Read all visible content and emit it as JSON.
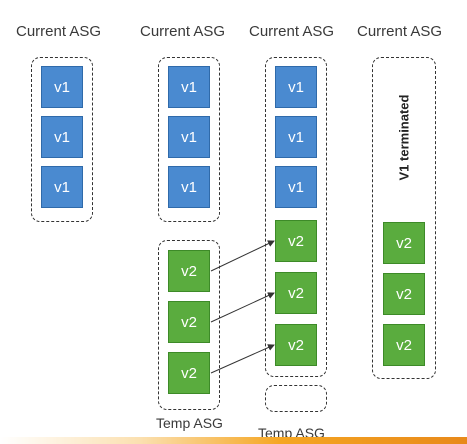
{
  "headers": [
    "Current ASG",
    "Current ASG",
    "Current ASG",
    "Current ASG"
  ],
  "temp_labels": [
    "Temp ASG",
    "Temp ASG"
  ],
  "terminated_label": "V1 terminated",
  "version_labels": {
    "v1": "v1",
    "v2": "v2"
  },
  "colors": {
    "v1_fill": "#4a8ad0",
    "v2_fill": "#5aac3e",
    "footer_accent": "#f5a623"
  }
}
